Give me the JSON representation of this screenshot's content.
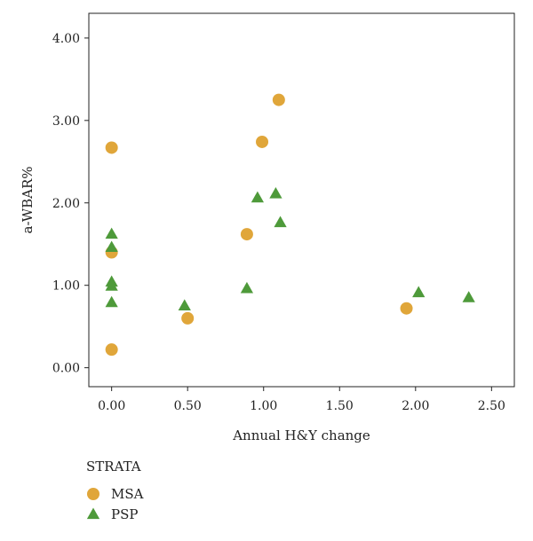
{
  "chart_data": {
    "type": "scatter",
    "xlabel": "Annual H&Y change",
    "ylabel": "a-WBAR%",
    "xlim": [
      -0.15,
      2.65
    ],
    "ylim": [
      -0.23,
      4.3
    ],
    "xticks": [
      "0.00",
      "0.50",
      "1.00",
      "1.50",
      "2.00",
      "2.50"
    ],
    "xtick_values": [
      0,
      0.5,
      1,
      1.5,
      2,
      2.5
    ],
    "yticks": [
      "0.00",
      "1.00",
      "2.00",
      "3.00",
      "4.00"
    ],
    "ytick_values": [
      0,
      1,
      2,
      3,
      4
    ],
    "grid": false,
    "legend": {
      "title": "STRATA",
      "placement": "bottom-left"
    },
    "series": [
      {
        "name": "MSA",
        "marker": "circle",
        "color": "#E0A63A",
        "points": [
          {
            "x": 0.0,
            "y": 2.67
          },
          {
            "x": 0.0,
            "y": 1.4
          },
          {
            "x": 0.0,
            "y": 0.22
          },
          {
            "x": 0.5,
            "y": 0.6
          },
          {
            "x": 0.89,
            "y": 1.62
          },
          {
            "x": 0.99,
            "y": 2.74
          },
          {
            "x": 1.1,
            "y": 3.25
          },
          {
            "x": 1.94,
            "y": 0.72
          }
        ]
      },
      {
        "name": "PSP",
        "marker": "triangle",
        "color": "#4E9A3A",
        "points": [
          {
            "x": 0.0,
            "y": 1.62
          },
          {
            "x": 0.0,
            "y": 1.46
          },
          {
            "x": 0.0,
            "y": 1.04
          },
          {
            "x": 0.0,
            "y": 0.99
          },
          {
            "x": 0.0,
            "y": 0.79
          },
          {
            "x": 0.48,
            "y": 0.75
          },
          {
            "x": 0.89,
            "y": 0.96
          },
          {
            "x": 0.96,
            "y": 2.06
          },
          {
            "x": 1.08,
            "y": 2.11
          },
          {
            "x": 1.11,
            "y": 1.76
          },
          {
            "x": 2.02,
            "y": 0.91
          },
          {
            "x": 2.35,
            "y": 0.85
          }
        ]
      }
    ]
  }
}
